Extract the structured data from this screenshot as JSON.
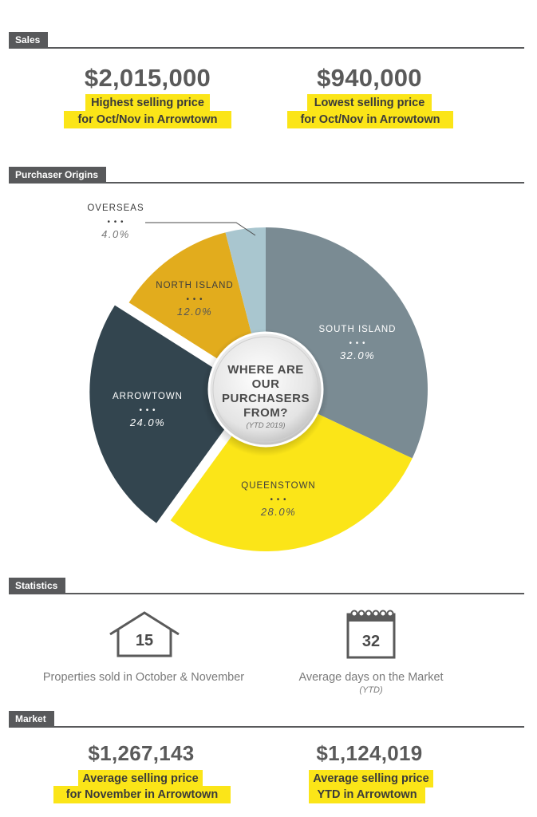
{
  "sales": {
    "header": "Sales",
    "items": [
      {
        "value": "$2,015,000",
        "line1": "Highest selling price",
        "line2": "for Oct/Nov  in Arrowtown"
      },
      {
        "value": "$940,000",
        "line1": "Lowest selling price",
        "line2": "for Oct/Nov in Arrowtown"
      }
    ]
  },
  "origins": {
    "header": "Purchaser Origins",
    "center_line1": "WHERE ARE",
    "center_line2": "OUR",
    "center_line3": "PURCHASERS",
    "center_line4": "FROM?",
    "center_sub": "(YTD 2019)"
  },
  "chart_data": {
    "type": "pie",
    "title": "WHERE ARE OUR PURCHASERS FROM?",
    "subtitle": "(YTD 2019)",
    "slices": [
      {
        "label": "SOUTH ISLAND",
        "value": 32.0,
        "value_label": "32.0%",
        "color": "#7a8b93"
      },
      {
        "label": "QUEENSTOWN",
        "value": 28.0,
        "value_label": "28.0%",
        "color": "#fbe518"
      },
      {
        "label": "ARROWTOWN",
        "value": 24.0,
        "value_label": "24.0%",
        "color": "#33454f"
      },
      {
        "label": "NORTH ISLAND",
        "value": 12.0,
        "value_label": "12.0%",
        "color": "#e2ac1d"
      },
      {
        "label": "OVERSEAS",
        "value": 4.0,
        "value_label": "4.0%",
        "color": "#a9c6cf"
      }
    ],
    "dots": "• • •"
  },
  "statistics": {
    "header": "Statistics",
    "items": [
      {
        "value": "15",
        "label": "Properties sold in October & November",
        "sub": "",
        "icon": "house-icon"
      },
      {
        "value": "32",
        "label": "Average days on the Market",
        "sub": "(YTD)",
        "icon": "calendar-icon"
      }
    ]
  },
  "market": {
    "header": "Market",
    "items": [
      {
        "value": "$1,267,143",
        "line1": "Average selling price",
        "line2": "for November in Arrowtown"
      },
      {
        "value": "$1,124,019",
        "line1": "Average selling price",
        "line2": "YTD in Arrowtown"
      }
    ]
  }
}
